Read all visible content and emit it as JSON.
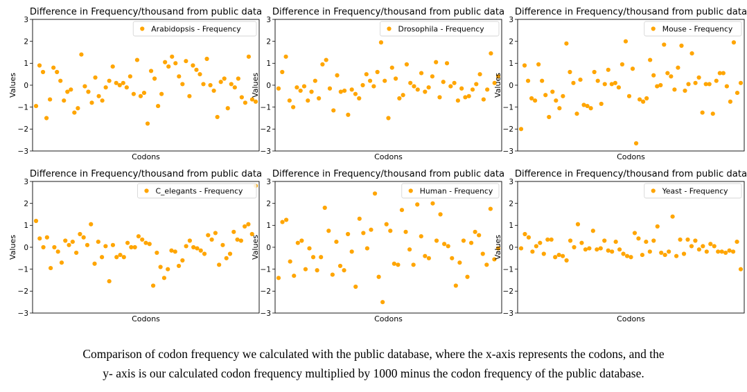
{
  "caption": {
    "line1": "Comparison of codon frequency we calculated with the public database, where the x-axis represents the codons, and the",
    "line2": "y- axis is our calculated codon frequency multiplied by 1000 minus the codon frequency of the public database."
  },
  "chart_data": [
    {
      "type": "scatter",
      "title": "Difference in Frequency/thousand from public data",
      "xlabel": "Codons",
      "ylabel": "Values",
      "ylim": [
        -3,
        3
      ],
      "yticks": [
        3,
        2,
        1,
        0,
        -1,
        -2,
        -3
      ],
      "ytick_labels": [
        "3",
        "2",
        "1",
        "0",
        "−1",
        "−2",
        "−3"
      ],
      "legend_position": "top-right",
      "grid": false,
      "color": "#FFA500",
      "series": [
        {
          "name": "Arabidopsis - Frequency",
          "values": [
            -0.95,
            0.9,
            0.6,
            -1.5,
            -0.65,
            0.8,
            0.6,
            0.2,
            -0.7,
            -0.3,
            -0.2,
            -1.25,
            -1.05,
            1.4,
            -0.05,
            -0.3,
            -0.8,
            0.35,
            -0.5,
            -0.7,
            -0.1,
            0.2,
            0.85,
            0.1,
            0.0,
            0.1,
            -0.1,
            0.4,
            -0.4,
            1.15,
            -0.5,
            -0.35,
            -1.75,
            0.65,
            0.3,
            -0.95,
            -0.4,
            1.05,
            0.85,
            1.3,
            1.0,
            0.4,
            0.05,
            1.1,
            -0.5,
            0.9,
            0.7,
            0.5,
            0.05,
            1.2,
            0.0,
            -0.25,
            -1.45,
            0.15,
            0.3,
            -1.05,
            0.05,
            -0.1,
            0.3,
            -0.55,
            -0.8,
            1.3,
            -0.65,
            -0.75
          ]
        }
      ]
    },
    {
      "type": "scatter",
      "title": "Difference in Frequency/thousand from public data",
      "xlabel": "Codons",
      "ylabel": "Values",
      "ylim": [
        -3,
        3
      ],
      "yticks": [
        3,
        2,
        1,
        0,
        -1,
        -2,
        -3
      ],
      "ytick_labels": [
        "3",
        "2",
        "1",
        "0",
        "−1",
        "−2",
        "−3"
      ],
      "legend_position": "top-right",
      "grid": false,
      "color": "#FFA500",
      "series": [
        {
          "name": "Drosophila - Frequency",
          "values": [
            -0.15,
            0.6,
            1.3,
            -0.7,
            -1.0,
            -0.1,
            -0.25,
            -0.05,
            -0.7,
            -0.3,
            0.2,
            -0.6,
            0.95,
            1.15,
            -0.15,
            -1.15,
            0.45,
            -0.3,
            -0.25,
            -1.35,
            -0.2,
            -0.4,
            -0.6,
            0.0,
            0.5,
            0.2,
            -0.05,
            0.6,
            1.95,
            0.2,
            -1.5,
            0.8,
            0.3,
            -0.6,
            -0.45,
            0.95,
            0.1,
            -0.05,
            -0.2,
            0.55,
            -0.3,
            -0.1,
            0.4,
            1.05,
            -0.55,
            0.15,
            1.0,
            -0.05,
            0.1,
            -0.7,
            -0.15,
            -0.55,
            -0.5,
            -0.2,
            0.05,
            0.5,
            -0.65,
            -0.2,
            1.45,
            0.1,
            0.4
          ]
        }
      ]
    },
    {
      "type": "scatter",
      "title": "Difference in Frequency/thousand from public data",
      "xlabel": "Codons",
      "ylabel": "Values",
      "ylim": [
        -3,
        3
      ],
      "yticks": [
        3,
        2,
        1,
        0,
        -1,
        -2,
        -3
      ],
      "ytick_labels": [
        "3",
        "2",
        "1",
        "0",
        "−1",
        "−2",
        "−3"
      ],
      "legend_position": "top-right",
      "grid": false,
      "color": "#FFA500",
      "series": [
        {
          "name": "Mouse - Frequency",
          "values": [
            -2.0,
            0.9,
            0.2,
            -0.6,
            -0.7,
            0.95,
            0.2,
            -0.45,
            -1.45,
            -0.3,
            -0.7,
            -1.05,
            -0.5,
            1.9,
            0.6,
            0.1,
            -1.3,
            0.25,
            -0.9,
            -0.95,
            -1.05,
            0.6,
            0.2,
            -0.85,
            0.05,
            0.7,
            0.05,
            0.1,
            -0.1,
            0.95,
            2.0,
            -0.5,
            0.75,
            -2.65,
            -0.65,
            -0.75,
            -0.6,
            1.15,
            0.45,
            -0.05,
            0.0,
            1.85,
            0.55,
            0.4,
            -0.2,
            0.8,
            1.8,
            -0.25,
            0.05,
            1.45,
            0.1,
            0.35,
            -1.25,
            0.05,
            0.05,
            -1.3,
            0.2,
            0.55,
            0.55,
            -0.05,
            -0.75,
            1.95,
            -0.35,
            0.1
          ]
        }
      ]
    },
    {
      "type": "scatter",
      "title": "Difference in Frequency/thousand from public data",
      "xlabel": "Codons",
      "ylabel": "Values",
      "ylim": [
        -3,
        3
      ],
      "yticks": [
        3,
        2,
        1,
        0,
        -1,
        -2,
        -3
      ],
      "ytick_labels": [
        "3",
        "2",
        "1",
        "0",
        "−1",
        "−2",
        "−3"
      ],
      "legend_position": "top-right",
      "grid": false,
      "color": "#FFA500",
      "series": [
        {
          "name": "C_elegants - Frequency",
          "values": [
            1.2,
            0.4,
            0.0,
            0.45,
            -0.95,
            0.0,
            -0.2,
            -0.7,
            0.3,
            0.1,
            0.25,
            -0.25,
            0.6,
            0.45,
            0.1,
            1.05,
            -0.75,
            0.25,
            -0.45,
            0.05,
            -1.55,
            0.1,
            -0.45,
            -0.35,
            -0.45,
            0.2,
            0.0,
            0.0,
            0.5,
            0.35,
            0.2,
            0.15,
            -1.75,
            -0.25,
            -0.9,
            -1.4,
            -1.0,
            -0.15,
            -0.2,
            -0.85,
            -0.6,
            0.05,
            0.3,
            0.0,
            -0.05,
            -0.15,
            -0.3,
            0.55,
            0.35,
            0.65,
            -0.8,
            0.1,
            -0.5,
            -0.3,
            0.7,
            0.35,
            0.3,
            0.95,
            1.05,
            0.6,
            2.8
          ]
        }
      ]
    },
    {
      "type": "scatter",
      "title": "Difference in Frequency/thousand from public data",
      "xlabel": "Codons",
      "ylabel": "Values",
      "ylim": [
        -3,
        3
      ],
      "yticks": [
        3,
        2,
        1,
        0,
        -1,
        -2,
        -3
      ],
      "ytick_labels": [
        "3",
        "2",
        "1",
        "0",
        "−1",
        "−2",
        "−3"
      ],
      "legend_position": "top-right",
      "grid": false,
      "color": "#FFA500",
      "series": [
        {
          "name": "Human - Frequency",
          "values": [
            -1.4,
            1.15,
            1.25,
            -0.65,
            -1.3,
            0.2,
            0.3,
            -1.0,
            -0.05,
            -0.45,
            -1.05,
            -0.45,
            1.8,
            0.75,
            -1.25,
            0.25,
            -0.85,
            -1.05,
            0.6,
            -0.2,
            -1.8,
            1.3,
            0.65,
            -0.05,
            0.8,
            2.45,
            -1.35,
            -2.5,
            1.05,
            0.75,
            -0.75,
            -0.8,
            1.7,
            0.7,
            -0.1,
            -0.8,
            1.95,
            0.5,
            -0.4,
            -0.5,
            2.0,
            0.3,
            1.5,
            0.15,
            0.05,
            -0.5,
            -1.75,
            -0.7,
            0.3,
            -1.35,
            0.2,
            0.7,
            0.55,
            -0.3,
            -0.8,
            1.75,
            -0.55,
            -0.05
          ]
        }
      ]
    },
    {
      "type": "scatter",
      "title": "Difference in Frequency/thousand from public data",
      "xlabel": "Codons",
      "ylabel": "Values",
      "ylim": [
        -3,
        3
      ],
      "yticks": [
        3,
        2,
        1,
        0,
        -1,
        -2,
        -3
      ],
      "ytick_labels": [
        "3",
        "2",
        "1",
        "0",
        "−1",
        "−2",
        "−3"
      ],
      "legend_position": "top-right",
      "grid": false,
      "color": "#FFA500",
      "series": [
        {
          "name": "Yeast - Frequency",
          "values": [
            -0.05,
            0.6,
            0.45,
            -0.2,
            0.05,
            0.2,
            -0.3,
            0.35,
            0.35,
            -0.45,
            -0.35,
            -0.4,
            -0.6,
            0.3,
            0.0,
            1.05,
            0.2,
            -0.1,
            -0.05,
            0.75,
            -0.1,
            -0.05,
            0.3,
            -0.15,
            -0.2,
            0.25,
            -0.1,
            -0.3,
            -0.4,
            -0.45,
            0.65,
            0.4,
            -0.35,
            0.25,
            -0.2,
            0.3,
            0.95,
            -0.25,
            -0.35,
            -0.2,
            1.4,
            -0.4,
            0.35,
            -0.3,
            0.35,
            0.05,
            0.3,
            -0.1,
            0.05,
            -0.2,
            0.15,
            0.05,
            -0.2,
            -0.2,
            -0.25,
            -0.15,
            -0.2,
            0.25,
            -1.0
          ]
        }
      ]
    }
  ]
}
